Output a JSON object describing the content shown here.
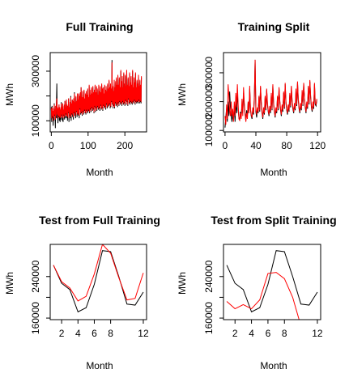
{
  "chart_data": [
    {
      "type": "line",
      "title": "Full Training",
      "xlabel": "Month",
      "ylabel": "MWh",
      "xlim": [
        -3,
        259
      ],
      "ylim": [
        55000,
        375000
      ],
      "xticks": [
        0,
        100,
        200
      ],
      "yticks": [
        100000,
        200000,
        300000
      ],
      "ytick_labels": [
        "100000",
        "",
        "300000"
      ],
      "series": [
        {
          "color": "#000000",
          "values": [
            155000,
            95000,
            160000,
            110000,
            130000,
            80000,
            150000,
            100000,
            170000,
            120000,
            140000,
            70000,
            160000,
            110000,
            175000,
            250000,
            110000,
            150000,
            90000,
            145000,
            115000,
            165000,
            100000,
            150000,
            95000,
            140000,
            105000,
            175000,
            120000,
            150000,
            100000,
            170000,
            95000,
            135000,
            120000,
            160000,
            105000,
            180000,
            110000,
            150000,
            125000,
            185000,
            110000,
            160000,
            100000,
            155000,
            130000,
            190000,
            95000,
            150000,
            120000,
            175000,
            110000,
            200000,
            100000,
            165000,
            125000,
            185000,
            115000,
            175000,
            105000,
            190000,
            130000,
            215000,
            120000,
            170000,
            110000,
            195000,
            135000,
            175000,
            115000,
            210000,
            125000,
            180000,
            120000,
            205000,
            110000,
            195000,
            145000,
            210000,
            125000,
            235000,
            130000,
            190000,
            120000,
            215000,
            135000,
            190000,
            125000,
            220000,
            140000,
            185000,
            130000,
            205000,
            125000,
            215000,
            140000,
            200000,
            130000,
            225000,
            135000,
            190000,
            140000,
            240000,
            130000,
            200000,
            145000,
            220000,
            135000,
            230000,
            150000,
            205000,
            140000,
            235000,
            145000,
            210000,
            130000,
            220000,
            155000,
            240000,
            135000,
            210000,
            150000,
            235000,
            140000,
            225000,
            155000,
            200000,
            145000,
            240000,
            150000,
            215000,
            140000,
            235000,
            160000,
            210000,
            145000,
            245000,
            150000,
            225000,
            140000,
            230000,
            160000,
            205000,
            150000,
            240000,
            155000,
            220000,
            145000,
            235000,
            165000,
            215000,
            150000,
            245000,
            155000,
            225000,
            160000,
            260000,
            165000,
            230000,
            150000,
            245000,
            155000,
            225000,
            175000,
            345000,
            165000,
            235000,
            150000,
            215000,
            160000,
            260000,
            150000,
            230000,
            170000,
            255000,
            160000,
            270000,
            165000,
            240000,
            155000,
            280000,
            170000,
            240000,
            160000,
            270000,
            175000,
            230000,
            165000,
            300000,
            170000,
            255000,
            160000,
            275000,
            175000,
            230000,
            165000,
            290000,
            170000,
            245000,
            160000,
            280000,
            180000,
            235000,
            165000,
            300000,
            175000,
            240000,
            160000,
            270000,
            185000,
            235000,
            170000,
            290000,
            165000,
            250000,
            175000,
            275000,
            170000,
            240000,
            165000,
            300000,
            175000,
            230000,
            170000,
            270000,
            180000,
            250000,
            165000,
            290000,
            175000,
            230000,
            170000,
            260000,
            175000,
            245000,
            170000,
            280000,
            180000,
            235000,
            170000,
            260000,
            175000,
            240000,
            170000,
            275000
          ]
        },
        {
          "color": "#ff0000",
          "values": [
            150000,
            110000,
            155000,
            120000,
            140000,
            100000,
            150000,
            115000,
            165000,
            125000,
            145000,
            105000,
            160000,
            120000,
            170000,
            190000,
            125000,
            155000,
            110000,
            150000,
            120000,
            165000,
            115000,
            155000,
            110000,
            145000,
            115000,
            170000,
            125000,
            155000,
            115000,
            170000,
            110000,
            145000,
            125000,
            165000,
            115000,
            180000,
            120000,
            155000,
            130000,
            185000,
            120000,
            165000,
            115000,
            160000,
            135000,
            190000,
            110000,
            155000,
            125000,
            175000,
            120000,
            195000,
            115000,
            170000,
            130000,
            185000,
            125000,
            180000,
            115000,
            190000,
            135000,
            210000,
            130000,
            175000,
            120000,
            200000,
            140000,
            180000,
            125000,
            210000,
            130000,
            185000,
            125000,
            210000,
            120000,
            200000,
            150000,
            215000,
            130000,
            235000,
            135000,
            195000,
            125000,
            220000,
            140000,
            195000,
            130000,
            225000,
            145000,
            190000,
            135000,
            210000,
            130000,
            220000,
            145000,
            205000,
            135000,
            230000,
            140000,
            195000,
            145000,
            245000,
            135000,
            205000,
            150000,
            225000,
            140000,
            235000,
            155000,
            210000,
            145000,
            240000,
            150000,
            215000,
            135000,
            225000,
            160000,
            245000,
            140000,
            215000,
            155000,
            240000,
            145000,
            230000,
            160000,
            205000,
            150000,
            245000,
            155000,
            220000,
            145000,
            240000,
            165000,
            215000,
            150000,
            250000,
            155000,
            230000,
            145000,
            235000,
            165000,
            210000,
            155000,
            245000,
            160000,
            225000,
            150000,
            240000,
            170000,
            220000,
            155000,
            250000,
            160000,
            230000,
            165000,
            265000,
            170000,
            235000,
            155000,
            250000,
            160000,
            230000,
            180000,
            335000,
            170000,
            240000,
            155000,
            220000,
            165000,
            265000,
            155000,
            235000,
            175000,
            260000,
            165000,
            275000,
            170000,
            245000,
            160000,
            285000,
            175000,
            245000,
            165000,
            275000,
            180000,
            235000,
            170000,
            305000,
            175000,
            260000,
            165000,
            280000,
            180000,
            235000,
            170000,
            295000,
            175000,
            250000,
            165000,
            285000,
            185000,
            240000,
            170000,
            305000,
            180000,
            245000,
            165000,
            275000,
            190000,
            240000,
            175000,
            295000,
            170000,
            255000,
            180000,
            280000,
            175000,
            245000,
            170000,
            305000,
            180000,
            235000,
            175000,
            275000,
            185000,
            255000,
            170000,
            295000,
            180000,
            235000,
            175000,
            265000,
            180000,
            250000,
            175000,
            285000,
            185000,
            240000,
            175000,
            265000,
            180000,
            245000,
            175000,
            280000
          ]
        }
      ]
    },
    {
      "type": "line",
      "title": "Training Split",
      "xlabel": "Month",
      "ylabel": "MWh",
      "xlim": [
        -2,
        124
      ],
      "ylim": [
        95000,
        370000
      ],
      "xticks": [
        0,
        40,
        80,
        120
      ],
      "yticks": [
        100000,
        200000,
        300000
      ],
      "ytick_labels": [
        "100000",
        "200000",
        "300000"
      ],
      "series": [
        {
          "color": "#000000",
          "values": [
            110000,
            145000,
            175000,
            130000,
            200000,
            150000,
            235000,
            180000,
            150000,
            130000,
            160000,
            140000,
            185000,
            130000,
            200000,
            160000,
            240000,
            170000,
            145000,
            135000,
            165000,
            150000,
            190000,
            160000,
            230000,
            185000,
            155000,
            135000,
            170000,
            150000,
            200000,
            160000,
            245000,
            170000,
            150000,
            140000,
            175000,
            155000,
            210000,
            345000,
            165000,
            145000,
            175000,
            160000,
            215000,
            165000,
            250000,
            190000,
            160000,
            140000,
            175000,
            155000,
            215000,
            170000,
            240000,
            190000,
            165000,
            150000,
            180000,
            160000,
            225000,
            170000,
            255000,
            190000,
            165000,
            145000,
            175000,
            160000,
            215000,
            170000,
            245000,
            200000,
            170000,
            150000,
            185000,
            165000,
            230000,
            175000,
            260000,
            195000,
            170000,
            155000,
            185000,
            165000,
            225000,
            180000,
            250000,
            200000,
            175000,
            160000,
            190000,
            170000,
            240000,
            185000,
            265000,
            205000,
            175000,
            160000,
            190000,
            170000,
            235000,
            185000,
            260000,
            210000,
            180000,
            160000,
            195000,
            175000,
            250000,
            190000,
            270000,
            215000,
            180000,
            165000,
            195000,
            175000,
            260000,
            190000,
            185000,
            205000
          ]
        },
        {
          "color": "#ff0000",
          "values": [
            150000,
            120000,
            190000,
            140000,
            260000,
            220000,
            170000,
            150000,
            200000,
            150000,
            175000,
            130000,
            200000,
            150000,
            230000,
            180000,
            260000,
            190000,
            140000,
            135000,
            160000,
            140000,
            210000,
            150000,
            250000,
            195000,
            160000,
            130000,
            160000,
            140000,
            200000,
            160000,
            255000,
            175000,
            155000,
            145000,
            180000,
            160000,
            220000,
            345000,
            175000,
            155000,
            180000,
            165000,
            220000,
            170000,
            255000,
            200000,
            165000,
            145000,
            180000,
            160000,
            220000,
            175000,
            245000,
            195000,
            170000,
            155000,
            185000,
            165000,
            230000,
            175000,
            260000,
            195000,
            170000,
            150000,
            180000,
            165000,
            220000,
            175000,
            250000,
            205000,
            175000,
            155000,
            190000,
            170000,
            235000,
            180000,
            265000,
            200000,
            175000,
            160000,
            190000,
            170000,
            230000,
            185000,
            255000,
            205000,
            180000,
            165000,
            195000,
            175000,
            245000,
            190000,
            270000,
            210000,
            180000,
            165000,
            195000,
            175000,
            240000,
            190000,
            265000,
            215000,
            185000,
            165000,
            200000,
            180000,
            255000,
            195000,
            275000,
            220000,
            185000,
            170000,
            200000,
            180000,
            265000,
            195000,
            190000,
            210000
          ]
        }
      ]
    },
    {
      "type": "line",
      "title": "Test from Full Training",
      "xlabel": "Month",
      "ylabel": "MWh",
      "xlim": [
        0.6,
        12.4
      ],
      "ylim": [
        157000,
        302000
      ],
      "xticks": [
        2,
        4,
        6,
        8,
        12
      ],
      "yticks": [
        160000,
        200000,
        240000
      ],
      "ytick_labels": [
        "160000",
        "",
        "240000"
      ],
      "series": [
        {
          "color": "#000000",
          "x": [
            1,
            2,
            3,
            4,
            5,
            6,
            7,
            8,
            9,
            10,
            11,
            12
          ],
          "values": [
            262000,
            227000,
            215000,
            172000,
            180000,
            225000,
            290000,
            288000,
            240000,
            187000,
            185000,
            210000
          ]
        },
        {
          "color": "#ff0000",
          "x": [
            1,
            2,
            3,
            4,
            5,
            6,
            7,
            8,
            9,
            10,
            11,
            12
          ],
          "values": [
            262000,
            230000,
            218000,
            193000,
            202000,
            245000,
            302000,
            285000,
            238000,
            195000,
            198000,
            247000
          ]
        }
      ]
    },
    {
      "type": "line",
      "title": "Test from Split Training",
      "xlabel": "Month",
      "ylabel": "MWh",
      "xlim": [
        0.6,
        12.4
      ],
      "ylim": [
        157000,
        302000
      ],
      "xticks": [
        2,
        4,
        6,
        8,
        12
      ],
      "yticks": [
        160000,
        200000,
        240000
      ],
      "ytick_labels": [
        "160000",
        "",
        "240000"
      ],
      "series": [
        {
          "color": "#000000",
          "x": [
            1,
            2,
            3,
            4,
            5,
            6,
            7,
            8,
            9,
            10,
            11,
            12
          ],
          "values": [
            262000,
            227000,
            215000,
            172000,
            180000,
            225000,
            290000,
            288000,
            240000,
            187000,
            185000,
            210000
          ]
        },
        {
          "color": "#ff0000",
          "x": [
            1,
            2,
            3,
            4,
            5,
            6,
            7,
            8,
            9,
            10,
            11,
            12
          ],
          "values": [
            192000,
            178000,
            186000,
            178000,
            195000,
            246000,
            248000,
            236000,
            200000,
            145000,
            145000,
            145000
          ]
        }
      ]
    }
  ]
}
